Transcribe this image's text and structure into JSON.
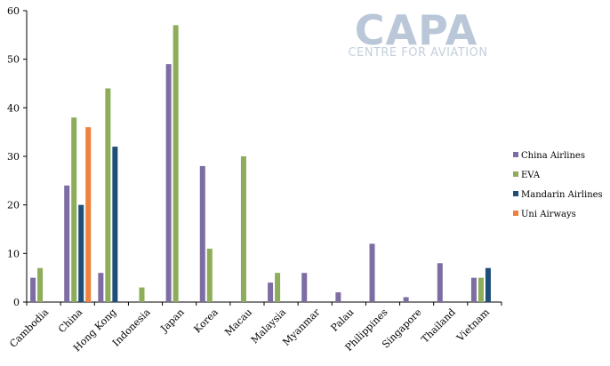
{
  "logo": {
    "main": "CAPA",
    "sub": "CENTRE FOR AVIATION"
  },
  "chart_data": {
    "type": "bar",
    "title": "",
    "xlabel": "",
    "ylabel": "",
    "ylim": [
      0,
      60
    ],
    "yticks": [
      0,
      10,
      20,
      30,
      40,
      50,
      60
    ],
    "grid": false,
    "legend_position": "right",
    "categories": [
      "Cambodia",
      "China",
      "Hong Kong",
      "Indonesia",
      "Japan",
      "Korea",
      "Macau",
      "Malaysia",
      "Myanmar",
      "Palau",
      "Philippines",
      "Singapore",
      "Thailand",
      "Vietnam"
    ],
    "series": [
      {
        "name": "China Airlines",
        "color": "#7d6da3",
        "values": [
          5,
          24,
          6,
          0,
          49,
          28,
          0,
          4,
          6,
          2,
          12,
          1,
          8,
          5
        ]
      },
      {
        "name": "EVA",
        "color": "#8dad5a",
        "values": [
          7,
          38,
          44,
          3,
          57,
          11,
          30,
          6,
          0,
          0,
          0,
          0,
          0,
          5
        ]
      },
      {
        "name": "Mandarin Airlines",
        "color": "#1f4e79",
        "values": [
          0,
          20,
          32,
          0,
          0,
          0,
          0,
          0,
          0,
          0,
          0,
          0,
          0,
          7
        ]
      },
      {
        "name": "Uni Airways",
        "color": "#f0803c",
        "values": [
          0,
          36,
          0,
          0,
          0,
          0,
          0,
          0,
          0,
          0,
          0,
          0,
          0,
          0
        ]
      }
    ]
  }
}
